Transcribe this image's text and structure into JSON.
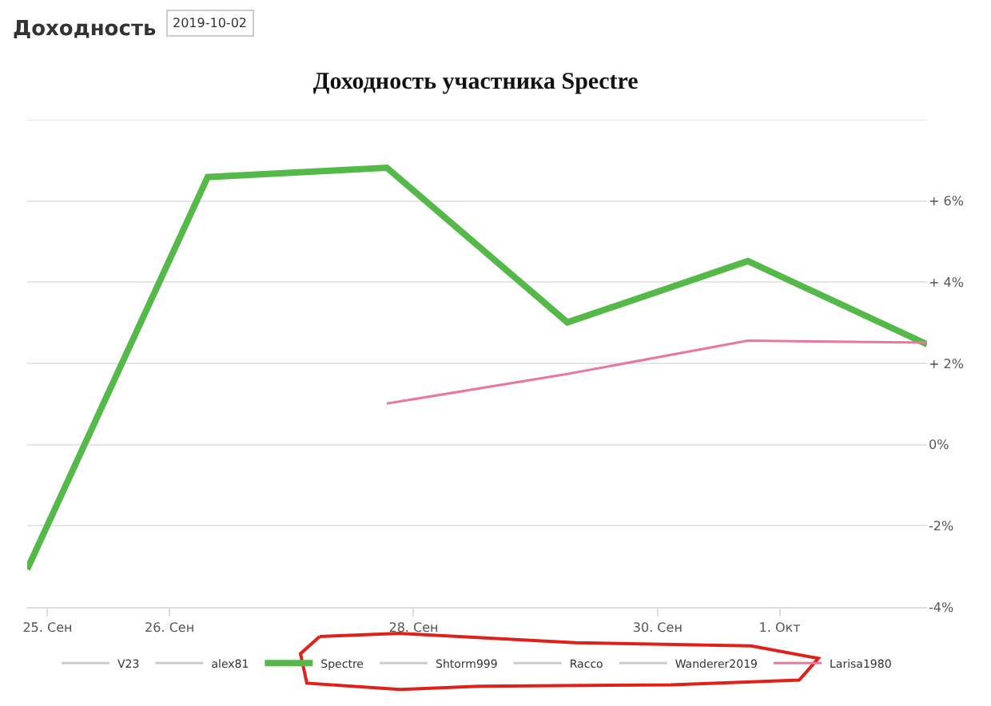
{
  "chart_data": {
    "type": "line",
    "title": "Доходность участника Spectre",
    "annotations": [
      "Доходность",
      "2019-10-02"
    ],
    "x": [
      "2019-09-24T20:00",
      "2019-09-26T07:30",
      "2019-09-27T18:45",
      "2019-09-29T06:15",
      "2019-09-30T17:45",
      "2019-10-02T05:00"
    ],
    "xlim": [
      "2019-09-24T20:00",
      "2019-10-02T05:00"
    ],
    "xticks": [
      {
        "value": "2019-09-25",
        "label": "25. Сен"
      },
      {
        "value": "2019-09-26",
        "label": "26. Сен"
      },
      {
        "value": "2019-09-28",
        "label": "28. Сен"
      },
      {
        "value": "2019-09-30",
        "label": "30. Сен"
      },
      {
        "value": "2019-10-01",
        "label": "1. Окт"
      }
    ],
    "ylim": [
      -4,
      8
    ],
    "yticks": [
      {
        "value": -4,
        "label": "-4%"
      },
      {
        "value": -2,
        "label": "-2%"
      },
      {
        "value": 0,
        "label": "0%"
      },
      {
        "value": 2,
        "label": "+ 2%"
      },
      {
        "value": 4,
        "label": "+ 4%"
      },
      {
        "value": 6,
        "label": "+ 6%"
      },
      {
        "value": 8,
        "label": null
      }
    ],
    "series": [
      {
        "name": "V23",
        "color": "#cccccc",
        "values": [
          null,
          null,
          null,
          null,
          null,
          null
        ]
      },
      {
        "name": "alex81",
        "color": "#cccccc",
        "values": [
          null,
          null,
          null,
          null,
          null,
          null
        ]
      },
      {
        "name": "Spectre",
        "color": "#55b94a",
        "values": [
          -3.07,
          6.59,
          6.82,
          3.01,
          4.52,
          2.47
        ]
      },
      {
        "name": "Shtorm999",
        "color": "#cccccc",
        "values": [
          null,
          null,
          null,
          null,
          null,
          null
        ]
      },
      {
        "name": "Racco",
        "color": "#cccccc",
        "values": [
          null,
          null,
          null,
          null,
          null,
          null
        ]
      },
      {
        "name": "Wanderer2019",
        "color": "#cccccc",
        "values": [
          null,
          null,
          null,
          null,
          null,
          null
        ]
      },
      {
        "name": "Larisa1980",
        "color": "#e8799a",
        "values": [
          null,
          null,
          1.01,
          1.74,
          2.56,
          2.51
        ]
      }
    ],
    "grid": "y",
    "legend": "bottom",
    "marker": "none"
  }
}
